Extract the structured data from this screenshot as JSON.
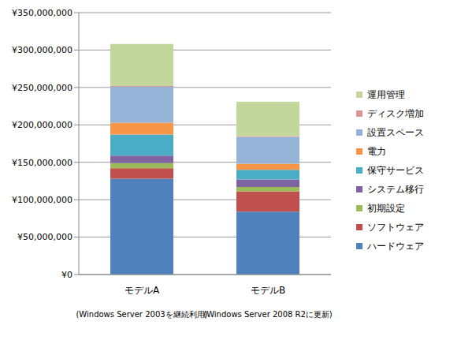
{
  "chart_data": {
    "type": "bar",
    "stacked": true,
    "grid": true,
    "legend": "right",
    "categories": [
      "モデルA",
      "モデルB"
    ],
    "category_notes": [
      "(Windows Server 2003を継続利用)",
      "(Windows Server 2008 R2に更新)"
    ],
    "ylim": [
      0,
      350000000
    ],
    "yticks": [
      {
        "value": 0,
        "label": "¥0"
      },
      {
        "value": 50000000,
        "label": "¥50,000,000"
      },
      {
        "value": 100000000,
        "label": "¥100,000,000"
      },
      {
        "value": 150000000,
        "label": "¥150,000,000"
      },
      {
        "value": 200000000,
        "label": "¥200,000,000"
      },
      {
        "value": 250000000,
        "label": "¥250,000,000"
      },
      {
        "value": 300000000,
        "label": "¥300,000,000"
      },
      {
        "value": 350000000,
        "label": "¥350,000,000"
      }
    ],
    "series": [
      {
        "name": "ハードウェア",
        "color": "#4F81BD",
        "values": [
          128000000,
          84000000
        ]
      },
      {
        "name": "ソフトウェア",
        "color": "#C0504D",
        "values": [
          14000000,
          27000000
        ]
      },
      {
        "name": "初期設定",
        "color": "#9BBB59",
        "values": [
          7000000,
          6000000
        ]
      },
      {
        "name": "システム移行",
        "color": "#8064A2",
        "values": [
          10000000,
          10000000
        ]
      },
      {
        "name": "保守サービス",
        "color": "#4BACC6",
        "values": [
          28000000,
          13000000
        ]
      },
      {
        "name": "電力",
        "color": "#F79646",
        "values": [
          16000000,
          8000000
        ]
      },
      {
        "name": "設置スペース",
        "color": "#95B3D7",
        "values": [
          48000000,
          36000000
        ]
      },
      {
        "name": "ディスク増加",
        "color": "#D99694",
        "values": [
          1000000,
          1000000
        ]
      },
      {
        "name": "運用管理",
        "color": "#C3D69B",
        "values": [
          56000000,
          46000000
        ]
      }
    ]
  }
}
